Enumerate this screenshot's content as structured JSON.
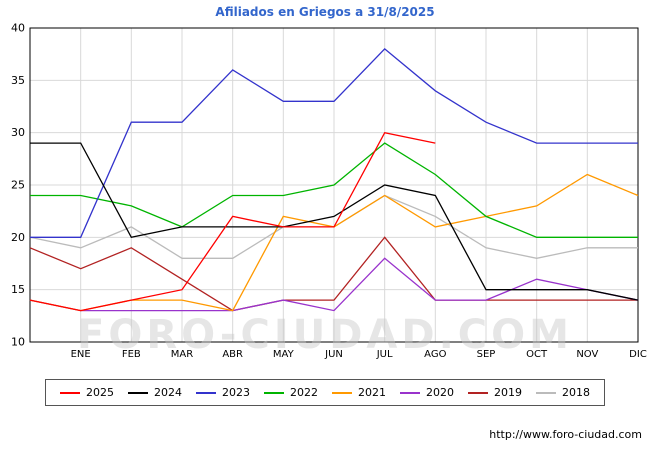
{
  "title": "Afiliados en Griegos a 31/8/2025",
  "watermark": "FORO-CIUDAD.COM",
  "source_url": "http://www.foro-ciudad.com",
  "colors": {
    "title": "#3366cc",
    "grid": "#d9d9d9",
    "axis": "#000000",
    "background": "#ffffff",
    "watermark": "#c8c8c8"
  },
  "chart_data": {
    "type": "line",
    "title": "Afiliados en Griegos a 31/8/2025",
    "categories": [
      "ENE",
      "FEB",
      "MAR",
      "ABR",
      "MAY",
      "JUN",
      "JUL",
      "AGO",
      "SEP",
      "OCT",
      "NOV",
      "DIC"
    ],
    "ylim": [
      10,
      40
    ],
    "ytick_step": 5,
    "yticks": [
      10,
      15,
      20,
      25,
      30,
      35,
      40
    ],
    "grid": true,
    "legend_position": "bottom",
    "note": "Each series has a value at the left axis edge (start) followed by 12 monthly values; 2025 ends in August.",
    "series": [
      {
        "name": "2025",
        "color": "#ff0000",
        "start": 14,
        "values": [
          13,
          14,
          15,
          22,
          21,
          21,
          30,
          29,
          null,
          null,
          null,
          null
        ]
      },
      {
        "name": "2024",
        "color": "#000000",
        "start": 29,
        "values": [
          29,
          20,
          21,
          21,
          21,
          22,
          25,
          24,
          15,
          15,
          15,
          14
        ]
      },
      {
        "name": "2023",
        "color": "#3333cc",
        "start": 20,
        "values": [
          20,
          31,
          31,
          36,
          33,
          33,
          38,
          34,
          31,
          29,
          29,
          29
        ]
      },
      {
        "name": "2022",
        "color": "#00b400",
        "start": 24,
        "values": [
          24,
          23,
          21,
          24,
          24,
          25,
          29,
          26,
          22,
          20,
          20,
          20
        ]
      },
      {
        "name": "2021",
        "color": "#ff9900",
        "start": 14,
        "values": [
          13,
          14,
          14,
          13,
          22,
          21,
          24,
          21,
          22,
          23,
          26,
          24
        ]
      },
      {
        "name": "2020",
        "color": "#9933cc",
        "start": 14,
        "values": [
          13,
          13,
          13,
          13,
          14,
          13,
          18,
          14,
          14,
          16,
          15,
          14
        ]
      },
      {
        "name": "2019",
        "color": "#b22222",
        "start": 19,
        "values": [
          17,
          19,
          16,
          13,
          14,
          14,
          20,
          14,
          14,
          14,
          14,
          14
        ]
      },
      {
        "name": "2018",
        "color": "#bbbbbb",
        "start": 20,
        "values": [
          19,
          21,
          18,
          18,
          21,
          21,
          24,
          22,
          19,
          18,
          19,
          19
        ]
      }
    ]
  }
}
